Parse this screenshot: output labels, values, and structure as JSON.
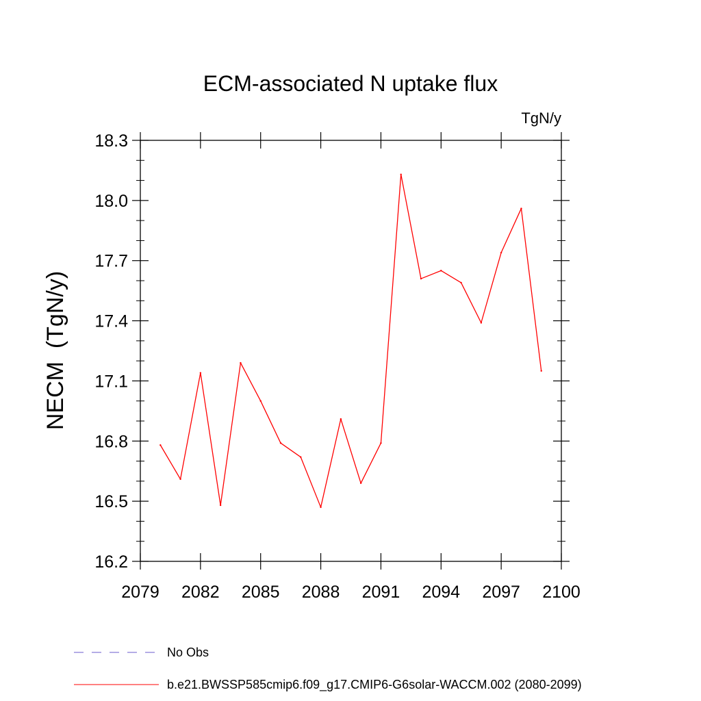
{
  "chart_data": {
    "type": "line",
    "title": "ECM-associated N uptake flux",
    "units_label": "TgN/y",
    "ylabel": "NECM  (TgN/y)",
    "xlabel": "",
    "xlim": [
      2079,
      2100
    ],
    "ylim": [
      16.2,
      18.3
    ],
    "x_ticks": [
      "2079",
      "2082",
      "2085",
      "2088",
      "2091",
      "2094",
      "2097",
      "2100"
    ],
    "y_ticks": [
      "16.2",
      "16.5",
      "16.8",
      "17.1",
      "17.4",
      "17.7",
      "18.0",
      "18.3"
    ],
    "x_tick_values": [
      2079,
      2082,
      2085,
      2088,
      2091,
      2094,
      2097,
      2100
    ],
    "y_tick_values": [
      16.2,
      16.5,
      16.8,
      17.1,
      17.4,
      17.7,
      18.0,
      18.3
    ],
    "series": [
      {
        "name": "b.e21.BWSSP585cmip6.f09_g17.CMIP6-G6solar-WACCM.002 (2080-2099)",
        "color": "#ff0000",
        "x": [
          2080,
          2081,
          2082,
          2083,
          2084,
          2085,
          2086,
          2087,
          2088,
          2089,
          2090,
          2091,
          2092,
          2093,
          2094,
          2095,
          2096,
          2097,
          2098,
          2099
        ],
        "values": [
          16.78,
          16.61,
          17.14,
          16.48,
          17.19,
          17.0,
          16.79,
          16.72,
          16.47,
          16.91,
          16.59,
          16.79,
          18.13,
          17.61,
          17.65,
          17.59,
          17.39,
          17.74,
          17.96,
          17.15
        ]
      }
    ],
    "legend": [
      {
        "label": "No Obs",
        "style": "dashed",
        "color": "#6a5acd"
      },
      {
        "label": "b.e21.BWSSP585cmip6.f09_g17.CMIP6-G6solar-WACCM.002 (2080-2099)",
        "style": "solid",
        "color": "#ff0000"
      }
    ],
    "legend_position": "bottom-left",
    "grid": false
  }
}
